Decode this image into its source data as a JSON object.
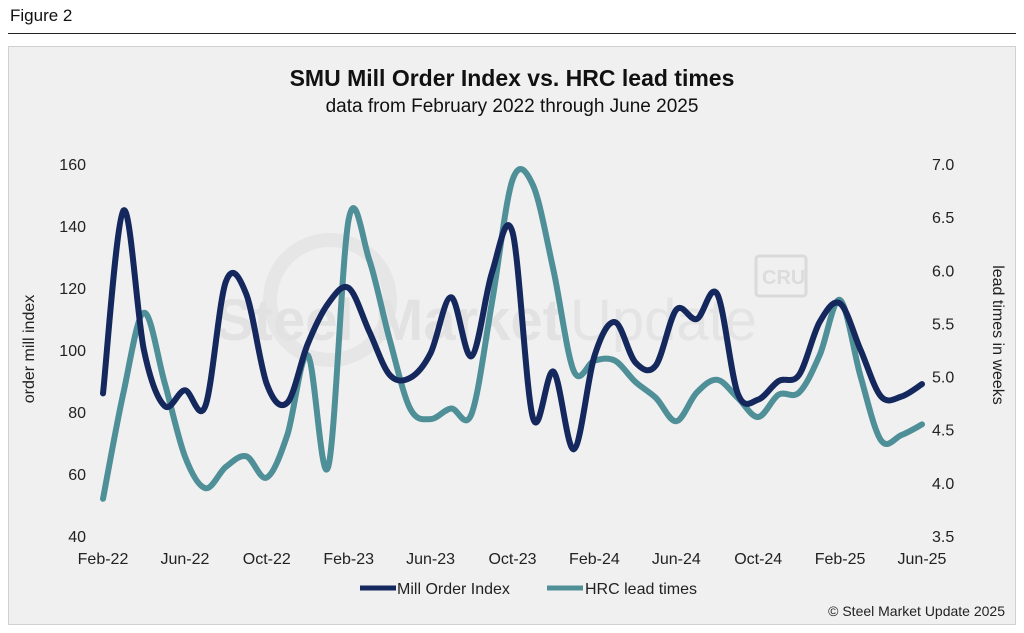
{
  "figure_label": "Figure 2",
  "watermark": {
    "brand_a": "Steel",
    "brand_b": "Market",
    "brand_c": "Update",
    "badge": "CRU"
  },
  "source": "© Steel Market Update 2025",
  "colors": {
    "mill_order": "#14285e",
    "lead_times": "#4f8f98",
    "panel_bg": "#f0f0f0"
  },
  "chart_data": {
    "type": "line",
    "title": "SMU Mill Order Index vs. HRC lead times",
    "subtitle": "data from February 2022 through June 2025",
    "ylabel": "order mill index",
    "y2label": "lead times in weeks",
    "ylim": [
      40,
      160
    ],
    "y2lim": [
      3.5,
      7.0
    ],
    "yticks": [
      "40",
      "60",
      "80",
      "100",
      "120",
      "140",
      "160"
    ],
    "y2ticks": [
      "3.5",
      "4.0",
      "4.5",
      "5.0",
      "5.5",
      "6.0",
      "6.5",
      "7.0"
    ],
    "x_tick_labels": [
      "Feb-22",
      "Jun-22",
      "Oct-22",
      "Feb-23",
      "Jun-23",
      "Oct-23",
      "Feb-24",
      "Jun-24",
      "Oct-24",
      "Feb-25",
      "Jun-25"
    ],
    "series": [
      {
        "name": "Mill Order Index",
        "axis": "left",
        "x": [
          0,
          1,
          2,
          3,
          4,
          5,
          6,
          7,
          8,
          9,
          10,
          11,
          12,
          13,
          14,
          15,
          16,
          17,
          18,
          19,
          20,
          21,
          22,
          23,
          24,
          25,
          26,
          27,
          28,
          29,
          30,
          31,
          32,
          33,
          34,
          35,
          36,
          37,
          38,
          39,
          40
        ],
        "values": [
          86,
          145,
          100,
          82,
          87,
          82,
          122,
          118,
          89,
          83,
          102,
          115,
          120,
          106,
          92,
          91,
          99,
          117,
          98,
          125,
          138,
          78,
          93,
          68,
          98,
          109,
          96,
          95,
          113,
          110,
          118,
          86,
          84,
          90,
          92,
          109,
          115,
          100,
          85,
          85,
          89
        ]
      },
      {
        "name": "HRC lead times",
        "axis": "right",
        "x": [
          0,
          1,
          2,
          3,
          4,
          5,
          6,
          7,
          8,
          9,
          10,
          11,
          12,
          13,
          14,
          15,
          16,
          17,
          18,
          19,
          20,
          21,
          22,
          23,
          24,
          25,
          26,
          27,
          28,
          29,
          30,
          31,
          32,
          33,
          34,
          35,
          36,
          37,
          38,
          39,
          40
        ],
        "values": [
          3.85,
          4.85,
          5.6,
          4.95,
          4.25,
          3.95,
          4.15,
          4.25,
          4.05,
          4.45,
          5.2,
          4.15,
          6.48,
          6.1,
          5.35,
          4.7,
          4.6,
          4.7,
          4.65,
          5.7,
          6.85,
          6.8,
          6.0,
          5.05,
          5.15,
          5.15,
          4.95,
          4.8,
          4.58,
          4.85,
          4.97,
          4.8,
          4.62,
          4.83,
          4.85,
          5.2,
          5.72,
          5.0,
          4.4,
          4.45,
          4.55
        ]
      }
    ],
    "legend": "bottom"
  }
}
